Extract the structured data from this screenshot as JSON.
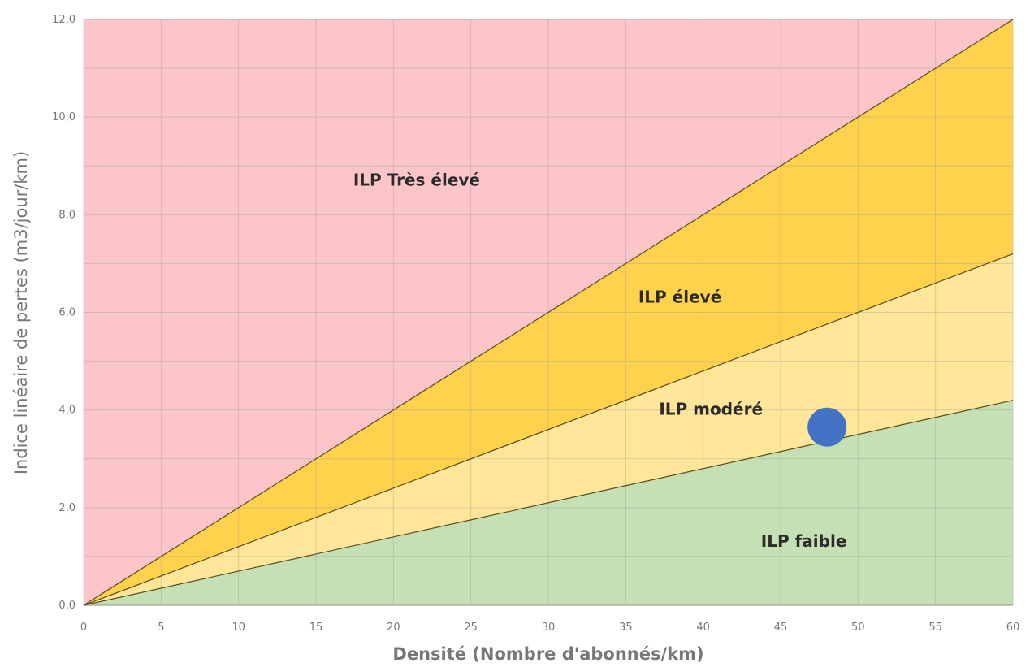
{
  "chart_data": {
    "type": "area",
    "xlabel": "Densité (Nombre d'abonnés/km)",
    "ylabel": "Indice linéaire de pertes (m3/jour/km)",
    "xlim": [
      0,
      60
    ],
    "ylim": [
      0,
      12
    ],
    "xticks": [
      0,
      5,
      10,
      15,
      20,
      25,
      30,
      35,
      40,
      45,
      50,
      55,
      60
    ],
    "yticks": [
      "0,0",
      "2,0",
      "4,0",
      "6,0",
      "8,0",
      "10,0",
      "12,0"
    ],
    "grid": true,
    "zones": [
      {
        "name": "ILP faible",
        "upper_bound_slope": 0.07,
        "color": "#c5e0b4"
      },
      {
        "name": "ILP modéré",
        "upper_bound_slope": 0.12,
        "color": "#ffe699"
      },
      {
        "name": "ILP élevé",
        "upper_bound_slope": 0.2,
        "color": "#ffd24d"
      },
      {
        "name": "ILP Très élevé",
        "upper_bound_slope": null,
        "color": "#fbc5c9"
      }
    ],
    "boundaries": [
      {
        "x": [
          0,
          60
        ],
        "y": [
          0,
          4.2
        ]
      },
      {
        "x": [
          0,
          60
        ],
        "y": [
          0,
          7.2
        ]
      },
      {
        "x": [
          0,
          60
        ],
        "y": [
          0,
          12
        ]
      }
    ],
    "zone_labels": [
      {
        "text": "ILP Très élevé",
        "x": 21.5,
        "y": 8.6
      },
      {
        "text": "ILP élevé",
        "x": 38.5,
        "y": 6.2
      },
      {
        "text": "ILP modéré",
        "x": 40.5,
        "y": 3.9
      },
      {
        "text": "ILP faible",
        "x": 46.5,
        "y": 1.2
      }
    ],
    "points": [
      {
        "x": 48,
        "y": 3.65,
        "color": "#4472c4"
      }
    ]
  }
}
